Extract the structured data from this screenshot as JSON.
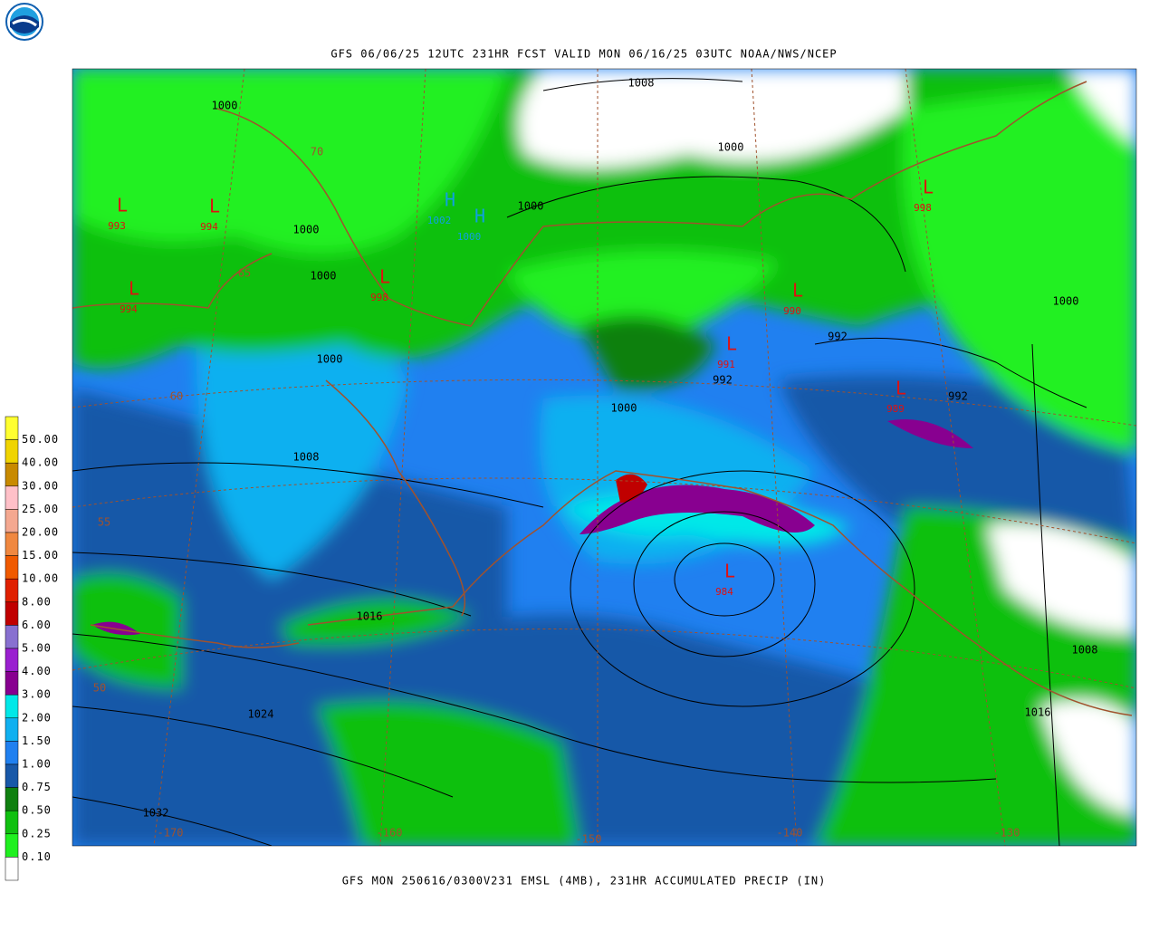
{
  "header": {
    "title": "GFS 06/06/25 12UTC 231HR FCST VALID MON 06/16/25 03UTC NOAA/NWS/NCEP"
  },
  "footer": {
    "caption": "GFS MON 250616/0300V231 EMSL (4MB), 231HR ACCUMULATED PRECIP (IN)"
  },
  "legend": {
    "colors": [
      "#ffff30",
      "#f0d400",
      "#c88a00",
      "#ffc0c8",
      "#f4a890",
      "#f08840",
      "#f05a00",
      "#e02000",
      "#c00000",
      "#8870d0",
      "#9a20d0",
      "#880090",
      "#00e8e8",
      "#10b0f0",
      "#2080f0",
      "#1858a8",
      "#108010",
      "#10c010",
      "#20f020",
      "#ffffff"
    ],
    "labels": [
      "50.00",
      "40.00",
      "30.00",
      "25.00",
      "20.00",
      "15.00",
      "10.00",
      "8.00",
      "6.00",
      "5.00",
      "4.00",
      "3.00",
      "2.00",
      "1.50",
      "1.00",
      "0.75",
      "0.50",
      "0.25",
      "0.10"
    ]
  },
  "map": {
    "isobar_labels": [
      "1008",
      "1000",
      "1000",
      "1000",
      "1000",
      "1000",
      "1000",
      "992",
      "992",
      "992",
      "1000",
      "1000",
      "1008",
      "1016",
      "1008",
      "1016",
      "1024",
      "1032"
    ],
    "lows": [
      {
        "symbol": "L",
        "value": "993"
      },
      {
        "symbol": "L",
        "value": "994"
      },
      {
        "symbol": "L",
        "value": "994"
      },
      {
        "symbol": "L",
        "value": "998"
      },
      {
        "symbol": "L",
        "value": "990"
      },
      {
        "symbol": "L",
        "value": "991"
      },
      {
        "symbol": "L",
        "value": "989"
      },
      {
        "symbol": "L",
        "value": "984"
      },
      {
        "symbol": "L",
        "value": "998"
      }
    ],
    "highs": [
      {
        "symbol": "H",
        "value": "1002"
      },
      {
        "symbol": "H",
        "value": "1000"
      }
    ],
    "grid_labels": [
      "70",
      "65",
      "60",
      "55",
      "50",
      "-170",
      "-160",
      "-150",
      "-140",
      "-130"
    ]
  }
}
